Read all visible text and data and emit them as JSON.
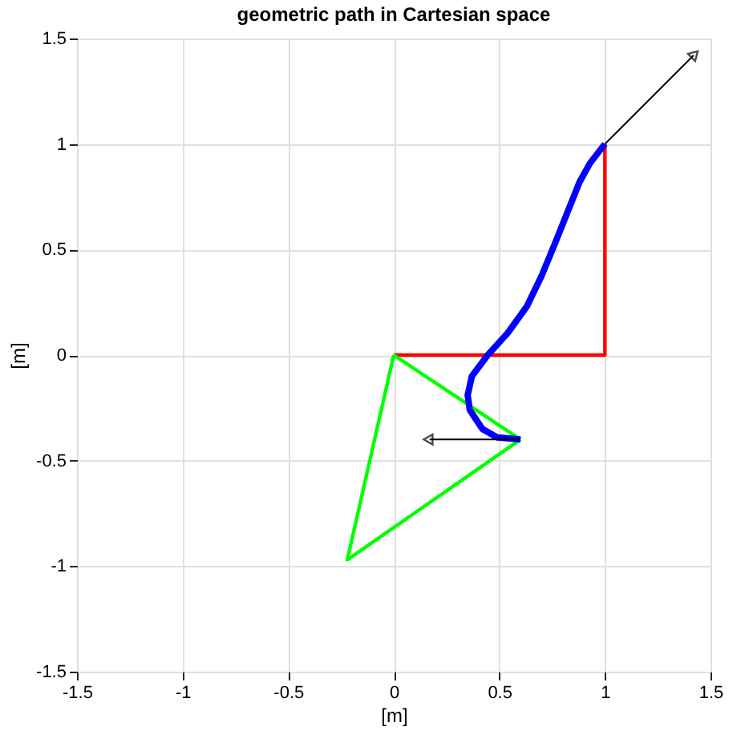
{
  "chart_data": {
    "type": "line",
    "title": "geometric path in Cartesian space",
    "xlabel": "[m]",
    "ylabel": "[m]",
    "xlim": [
      -1.5,
      1.5
    ],
    "ylim": [
      -1.5,
      1.5
    ],
    "xticks": [
      -1.5,
      -1,
      -0.5,
      0,
      0.5,
      1,
      1.5
    ],
    "yticks": [
      -1.5,
      -1,
      -0.5,
      0,
      0.5,
      1,
      1.5
    ],
    "grid": true,
    "series": [
      {
        "color": "#ff0000",
        "x": [
          0,
          1,
          1
        ],
        "values": [
          0,
          0,
          1
        ]
      },
      {
        "color": "#00ff00",
        "x": [
          0,
          -0.22,
          0.6
        ],
        "values": [
          0,
          -0.97,
          -0.4
        ]
      },
      {
        "color": "#00ff00",
        "x": [
          0.6,
          0
        ],
        "values": [
          -0.4,
          0
        ]
      },
      {
        "color": "#0000ff",
        "x": [
          0.6,
          0.49,
          0.42,
          0.36,
          0.35,
          0.37,
          0.445,
          0.54,
          0.63,
          0.7,
          0.76,
          0.82,
          0.88,
          0.93,
          1
        ],
        "values": [
          -0.4,
          -0.39,
          -0.35,
          -0.26,
          -0.19,
          -0.1,
          0,
          0.105,
          0.23,
          0.375,
          0.52,
          0.67,
          0.82,
          0.91,
          1
        ]
      },
      {
        "color": "#000000",
        "x": [
          1,
          1.42
        ],
        "values": [
          1,
          1.42
        ],
        "marker": "triangle"
      },
      {
        "color": "#000000",
        "x": [
          0.6,
          0.17
        ],
        "values": [
          -0.4,
          -0.4
        ],
        "marker": "triangle"
      }
    ]
  }
}
